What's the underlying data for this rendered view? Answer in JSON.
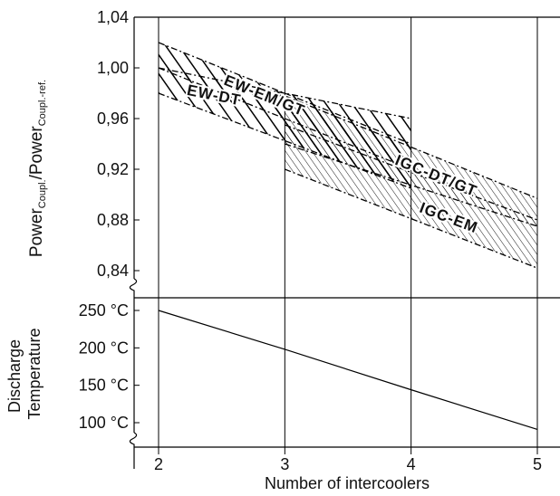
{
  "chart_data": [
    {
      "type": "area",
      "title": "",
      "xlabel": "Number of intercoolers",
      "ylabel": {
        "main": "Power",
        "sub1": "Coupl.",
        "mid": "/Power",
        "sub2": "Coupl.-ref."
      },
      "xlim": [
        2,
        5
      ],
      "ylim": [
        0.84,
        1.04
      ],
      "x_ticks": [
        "2",
        "3",
        "4",
        "5"
      ],
      "y_ticks": [
        {
          "value": 0.84,
          "label": "0,84"
        },
        {
          "value": 0.88,
          "label": "0,88"
        },
        {
          "value": 0.92,
          "label": "0,92"
        },
        {
          "value": 0.96,
          "label": "0,96"
        },
        {
          "value": 1.0,
          "label": "1,00"
        },
        {
          "value": 1.04,
          "label": "1,04"
        }
      ],
      "grid": true,
      "bands": [
        {
          "name": "EW-EM/GT",
          "x": [
            2,
            4
          ],
          "upper": [
            1.02,
            0.94
          ],
          "lower": [
            1.0,
            0.92
          ]
        },
        {
          "name": "EW-DT",
          "x": [
            2,
            4
          ],
          "upper": [
            1.0,
            0.96
          ],
          "lower": [
            0.98,
            0.905
          ]
        },
        {
          "name": "IGC-DT/GT",
          "x": [
            3,
            5
          ],
          "upper": [
            0.978,
            0.897
          ],
          "lower": [
            0.94,
            0.875
          ]
        },
        {
          "name": "IGC-EM",
          "x": [
            3,
            5
          ],
          "upper": [
            0.955,
            0.88
          ],
          "lower": [
            0.92,
            0.842
          ]
        }
      ]
    },
    {
      "type": "line",
      "title": "",
      "xlabel": "Number of intercoolers",
      "ylabel": {
        "line1": "Discharge",
        "line2": "Temperature"
      },
      "xlim": [
        2,
        5
      ],
      "ylim": [
        100,
        250
      ],
      "x_ticks": [
        "2",
        "3",
        "4",
        "5"
      ],
      "y_ticks": [
        {
          "value": 100,
          "label": "100 °C"
        },
        {
          "value": 150,
          "label": "150 °C"
        },
        {
          "value": 200,
          "label": "200 °C"
        },
        {
          "value": 250,
          "label": "250 °C"
        }
      ],
      "grid": true,
      "series": [
        {
          "x": [
            2,
            3,
            4,
            5
          ],
          "values": [
            250,
            198,
            144,
            91
          ]
        }
      ]
    }
  ]
}
